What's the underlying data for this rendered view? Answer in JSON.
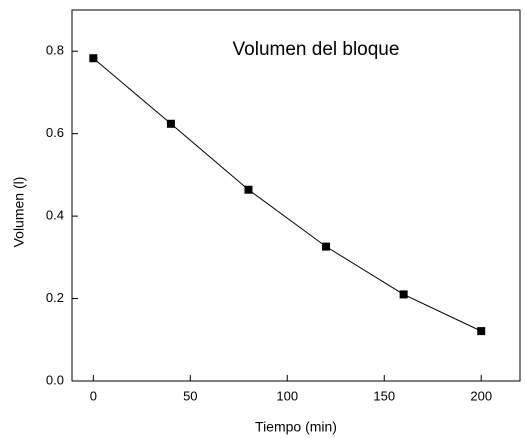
{
  "chart_data": {
    "type": "line",
    "annotation": "Volumen del bloque",
    "x_label": "Tiempo (min)",
    "y_label": "Volumen (l)",
    "x": [
      0,
      40,
      80,
      120,
      160,
      200
    ],
    "series": [
      {
        "color": "#000000",
        "values": [
          0.783,
          0.624,
          0.464,
          0.326,
          0.21,
          0.121
        ]
      }
    ],
    "xlim": [
      -11,
      220
    ],
    "ylim": [
      0,
      0.9
    ],
    "xticks": [
      0,
      50,
      100,
      150,
      200
    ],
    "yticks": [
      {
        "value": 0,
        "label": "0.0"
      },
      0.2,
      0.4,
      0.6,
      0.8
    ]
  }
}
